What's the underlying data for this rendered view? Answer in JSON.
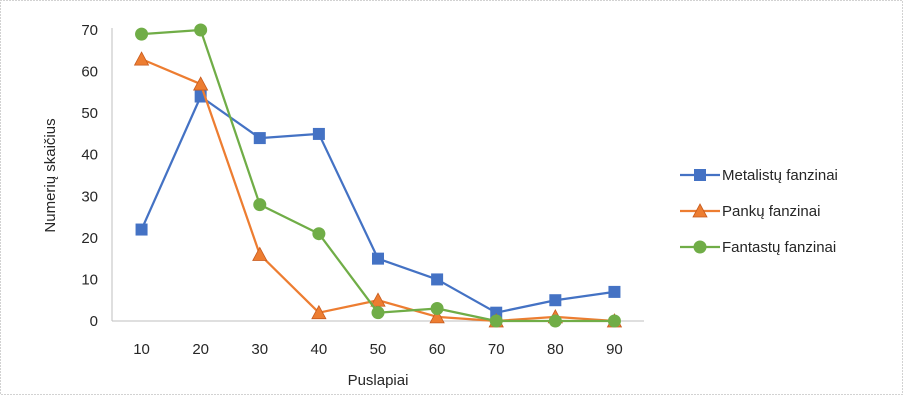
{
  "chart_data": {
    "type": "line",
    "title": "",
    "xlabel": "Puslapiai",
    "ylabel": "Numerių skaičius",
    "categories": [
      "10",
      "20",
      "30",
      "40",
      "50",
      "60",
      "70",
      "80",
      "90"
    ],
    "ylim": [
      0,
      70
    ],
    "yticks": [
      "0",
      "10",
      "20",
      "30",
      "40",
      "50",
      "60",
      "70"
    ],
    "grid": false,
    "legend_position": "right",
    "series": [
      {
        "name": "Metalistų fanzinai",
        "values": [
          22,
          54,
          44,
          45,
          15,
          10,
          2,
          5,
          7
        ],
        "color": "#4472C4",
        "marker": "square"
      },
      {
        "name": "Pankų fanzinai",
        "values": [
          63,
          57,
          16,
          2,
          5,
          1,
          0,
          1,
          0
        ],
        "color": "#ED7D31",
        "marker": "triangle"
      },
      {
        "name": "Fantastų fanzinai",
        "values": [
          69,
          70,
          28,
          21,
          2,
          3,
          0,
          0,
          0
        ],
        "color": "#70AD47",
        "marker": "circle"
      }
    ]
  }
}
